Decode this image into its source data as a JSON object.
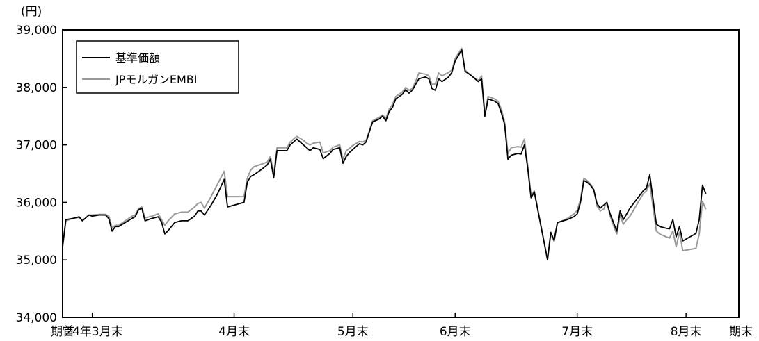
{
  "chart_data": {
    "type": "line",
    "unit_label": "(円)",
    "y_ticks": [
      "39,000",
      "38,000",
      "37,000",
      "36,000",
      "35,000",
      "34,000"
    ],
    "ylim": [
      34000,
      39000
    ],
    "x_ticks": [
      {
        "label": "期首",
        "x": 0
      },
      {
        "label": "'24年3月末",
        "x": 9
      },
      {
        "label": "4月末",
        "x": 52
      },
      {
        "label": "5月末",
        "x": 88
      },
      {
        "label": "6月末",
        "x": 119
      },
      {
        "label": "7月末",
        "x": 156
      },
      {
        "label": "8月末",
        "x": 189
      },
      {
        "label": "期末",
        "x": 205
      }
    ],
    "xlim": [
      0,
      205
    ],
    "legend_position": "top-left",
    "series": [
      {
        "name": "基準価額",
        "color": "#000000",
        "points": [
          [
            0,
            35230
          ],
          [
            1,
            35700
          ],
          [
            3,
            35720
          ],
          [
            5,
            35750
          ],
          [
            6,
            35680
          ],
          [
            7,
            35730
          ],
          [
            8,
            35780
          ],
          [
            9,
            35760
          ],
          [
            11,
            35780
          ],
          [
            13,
            35780
          ],
          [
            14,
            35720
          ],
          [
            15,
            35500
          ],
          [
            16,
            35580
          ],
          [
            17,
            35580
          ],
          [
            19,
            35650
          ],
          [
            21,
            35720
          ],
          [
            22,
            35750
          ],
          [
            23,
            35870
          ],
          [
            24,
            35900
          ],
          [
            25,
            35680
          ],
          [
            27,
            35720
          ],
          [
            29,
            35750
          ],
          [
            30,
            35660
          ],
          [
            31,
            35450
          ],
          [
            32,
            35510
          ],
          [
            34,
            35650
          ],
          [
            36,
            35680
          ],
          [
            38,
            35680
          ],
          [
            40,
            35760
          ],
          [
            41,
            35850
          ],
          [
            42,
            35850
          ],
          [
            43,
            35780
          ],
          [
            45,
            35950
          ],
          [
            47,
            36150
          ],
          [
            49,
            36400
          ],
          [
            50,
            35920
          ],
          [
            55,
            36000
          ],
          [
            56,
            36350
          ],
          [
            57,
            36450
          ],
          [
            58,
            36480
          ],
          [
            60,
            36560
          ],
          [
            62,
            36650
          ],
          [
            63,
            36750
          ],
          [
            64,
            36430
          ],
          [
            65,
            36900
          ],
          [
            68,
            36900
          ],
          [
            69,
            37000
          ],
          [
            70,
            37050
          ],
          [
            71,
            37100
          ],
          [
            73,
            37000
          ],
          [
            74,
            36950
          ],
          [
            75,
            36900
          ],
          [
            76,
            36950
          ],
          [
            78,
            36920
          ],
          [
            79,
            36760
          ],
          [
            81,
            36850
          ],
          [
            82,
            36920
          ],
          [
            84,
            36950
          ],
          [
            85,
            36680
          ],
          [
            86,
            36800
          ],
          [
            87,
            36870
          ],
          [
            88,
            36920
          ],
          [
            90,
            37020
          ],
          [
            91,
            37000
          ],
          [
            92,
            37050
          ],
          [
            93,
            37230
          ],
          [
            94,
            37400
          ],
          [
            96,
            37450
          ],
          [
            97,
            37500
          ],
          [
            98,
            37420
          ],
          [
            99,
            37580
          ],
          [
            100,
            37650
          ],
          [
            101,
            37800
          ],
          [
            103,
            37880
          ],
          [
            104,
            37960
          ],
          [
            105,
            37900
          ],
          [
            106,
            37950
          ],
          [
            107,
            38050
          ],
          [
            108,
            38150
          ],
          [
            110,
            38180
          ],
          [
            111,
            38150
          ],
          [
            112,
            37980
          ],
          [
            113,
            37950
          ],
          [
            114,
            38150
          ],
          [
            115,
            38100
          ],
          [
            117,
            38180
          ],
          [
            118,
            38260
          ],
          [
            119,
            38460
          ],
          [
            121,
            38650
          ],
          [
            122,
            38280
          ],
          [
            124,
            38200
          ],
          [
            126,
            38100
          ],
          [
            127,
            38150
          ],
          [
            128,
            37500
          ],
          [
            129,
            37800
          ],
          [
            131,
            37760
          ],
          [
            132,
            37720
          ],
          [
            133,
            37560
          ],
          [
            134,
            37350
          ],
          [
            135,
            36750
          ],
          [
            136,
            36820
          ],
          [
            138,
            36850
          ],
          [
            139,
            36840
          ],
          [
            140,
            37000
          ],
          [
            141,
            36600
          ],
          [
            142,
            36080
          ],
          [
            143,
            36180
          ],
          [
            147,
            35000
          ],
          [
            148,
            35480
          ],
          [
            149,
            35340
          ],
          [
            150,
            35650
          ],
          [
            153,
            35700
          ],
          [
            155,
            35750
          ],
          [
            156,
            35800
          ],
          [
            157,
            36000
          ],
          [
            158,
            36380
          ],
          [
            159,
            36350
          ],
          [
            160,
            36300
          ],
          [
            161,
            36220
          ],
          [
            162,
            35980
          ],
          [
            163,
            35900
          ],
          [
            164,
            35950
          ],
          [
            165,
            36000
          ],
          [
            166,
            35800
          ],
          [
            167,
            35650
          ],
          [
            168,
            35500
          ],
          [
            169,
            35850
          ],
          [
            170,
            35700
          ],
          [
            171,
            35800
          ],
          [
            172,
            35900
          ],
          [
            176,
            36200
          ],
          [
            177,
            36250
          ],
          [
            178,
            36480
          ],
          [
            180,
            35620
          ],
          [
            181,
            35580
          ],
          [
            183,
            35550
          ],
          [
            184,
            35540
          ],
          [
            185,
            35700
          ],
          [
            186,
            35400
          ],
          [
            187,
            35580
          ],
          [
            188,
            35330
          ],
          [
            192,
            35460
          ],
          [
            193,
            35700
          ],
          [
            194,
            36300
          ],
          [
            195,
            36150
          ]
        ]
      },
      {
        "name": "JPモルガンEMBI",
        "color": "#999999",
        "points": [
          [
            0,
            35230
          ],
          [
            1,
            35680
          ],
          [
            3,
            35720
          ],
          [
            5,
            35740
          ],
          [
            6,
            35690
          ],
          [
            7,
            35730
          ],
          [
            8,
            35780
          ],
          [
            9,
            35780
          ],
          [
            11,
            35790
          ],
          [
            13,
            35790
          ],
          [
            14,
            35760
          ],
          [
            15,
            35560
          ],
          [
            16,
            35600
          ],
          [
            17,
            35600
          ],
          [
            19,
            35680
          ],
          [
            21,
            35760
          ],
          [
            22,
            35780
          ],
          [
            23,
            35890
          ],
          [
            24,
            35920
          ],
          [
            25,
            35730
          ],
          [
            27,
            35760
          ],
          [
            29,
            35800
          ],
          [
            30,
            35700
          ],
          [
            31,
            35600
          ],
          [
            32,
            35680
          ],
          [
            34,
            35800
          ],
          [
            36,
            35830
          ],
          [
            38,
            35830
          ],
          [
            40,
            35920
          ],
          [
            41,
            35980
          ],
          [
            42,
            36000
          ],
          [
            43,
            35900
          ],
          [
            45,
            36100
          ],
          [
            47,
            36320
          ],
          [
            49,
            36540
          ],
          [
            50,
            36100
          ],
          [
            55,
            36100
          ],
          [
            56,
            36420
          ],
          [
            57,
            36560
          ],
          [
            58,
            36620
          ],
          [
            60,
            36660
          ],
          [
            62,
            36700
          ],
          [
            63,
            36800
          ],
          [
            64,
            36500
          ],
          [
            65,
            36950
          ],
          [
            68,
            36950
          ],
          [
            69,
            37050
          ],
          [
            70,
            37100
          ],
          [
            71,
            37150
          ],
          [
            73,
            37080
          ],
          [
            74,
            37030
          ],
          [
            75,
            37000
          ],
          [
            76,
            37030
          ],
          [
            78,
            37050
          ],
          [
            79,
            36860
          ],
          [
            81,
            36900
          ],
          [
            82,
            36960
          ],
          [
            84,
            37000
          ],
          [
            85,
            36750
          ],
          [
            86,
            36900
          ],
          [
            87,
            36940
          ],
          [
            88,
            36990
          ],
          [
            90,
            37060
          ],
          [
            91,
            37050
          ],
          [
            92,
            37080
          ],
          [
            93,
            37250
          ],
          [
            94,
            37420
          ],
          [
            96,
            37480
          ],
          [
            97,
            37520
          ],
          [
            98,
            37460
          ],
          [
            99,
            37620
          ],
          [
            100,
            37700
          ],
          [
            101,
            37840
          ],
          [
            103,
            37920
          ],
          [
            104,
            38000
          ],
          [
            105,
            37950
          ],
          [
            106,
            37980
          ],
          [
            107,
            38100
          ],
          [
            108,
            38250
          ],
          [
            110,
            38230
          ],
          [
            111,
            38200
          ],
          [
            112,
            38050
          ],
          [
            113,
            38060
          ],
          [
            114,
            38250
          ],
          [
            115,
            38200
          ],
          [
            117,
            38260
          ],
          [
            118,
            38300
          ],
          [
            119,
            38500
          ],
          [
            121,
            38680
          ],
          [
            122,
            38300
          ],
          [
            124,
            38200
          ],
          [
            126,
            38120
          ],
          [
            127,
            38200
          ],
          [
            128,
            37550
          ],
          [
            129,
            37840
          ],
          [
            131,
            37800
          ],
          [
            132,
            37760
          ],
          [
            133,
            37620
          ],
          [
            134,
            37400
          ],
          [
            135,
            36850
          ],
          [
            136,
            36950
          ],
          [
            138,
            36970
          ],
          [
            139,
            36960
          ],
          [
            140,
            37100
          ],
          [
            141,
            36650
          ],
          [
            142,
            36120
          ],
          [
            143,
            36200
          ],
          [
            147,
            35000
          ],
          [
            148,
            35450
          ],
          [
            149,
            35320
          ],
          [
            150,
            35640
          ],
          [
            153,
            35720
          ],
          [
            155,
            35800
          ],
          [
            156,
            35860
          ],
          [
            157,
            36050
          ],
          [
            158,
            36420
          ],
          [
            159,
            36380
          ],
          [
            160,
            36320
          ],
          [
            161,
            36230
          ],
          [
            162,
            35940
          ],
          [
            163,
            35850
          ],
          [
            164,
            35880
          ],
          [
            165,
            36000
          ],
          [
            166,
            35760
          ],
          [
            167,
            35600
          ],
          [
            168,
            35450
          ],
          [
            169,
            35780
          ],
          [
            170,
            35620
          ],
          [
            171,
            35700
          ],
          [
            172,
            35760
          ],
          [
            176,
            36150
          ],
          [
            177,
            36200
          ],
          [
            178,
            36330
          ],
          [
            180,
            35500
          ],
          [
            181,
            35450
          ],
          [
            183,
            35400
          ],
          [
            184,
            35380
          ],
          [
            185,
            35500
          ],
          [
            186,
            35230
          ],
          [
            187,
            35480
          ],
          [
            188,
            35160
          ],
          [
            192,
            35200
          ],
          [
            193,
            35450
          ],
          [
            194,
            36020
          ],
          [
            195,
            35880
          ]
        ]
      }
    ]
  }
}
